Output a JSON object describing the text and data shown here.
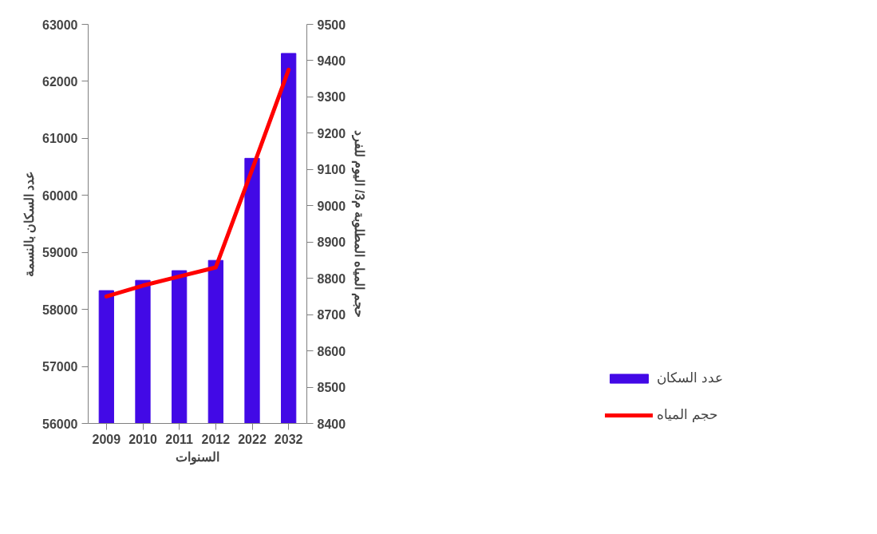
{
  "chart_data": {
    "type": "bar",
    "categories": [
      "2009",
      "2010",
      "2011",
      "2012",
      "2022",
      "2032"
    ],
    "xlabel": "السنوات",
    "ylabel": "عدد السكان بالنسمة",
    "y2label": "حجم المياه المطلوبة م3/ اليوم للفرد",
    "ylim": [
      56000,
      63000
    ],
    "yticks": [
      56000,
      57000,
      58000,
      59000,
      60000,
      61000,
      62000,
      63000
    ],
    "y2lim": [
      8400,
      9500
    ],
    "y2ticks": [
      8400,
      8500,
      8600,
      8700,
      8800,
      8900,
      9000,
      9100,
      9200,
      9300,
      9400,
      9500
    ],
    "series": [
      {
        "name": "عدد السكان",
        "color": "#4209e6",
        "values": [
          58330,
          58510,
          58680,
          58860,
          60650,
          62490
        ]
      },
      {
        "name": "حجم المياه",
        "type": "line",
        "axis": "y2",
        "color": "#ff0000",
        "values": [
          8750,
          8780,
          8805,
          8830,
          9100,
          9375
        ]
      }
    ],
    "grid": false,
    "legend": "right"
  }
}
